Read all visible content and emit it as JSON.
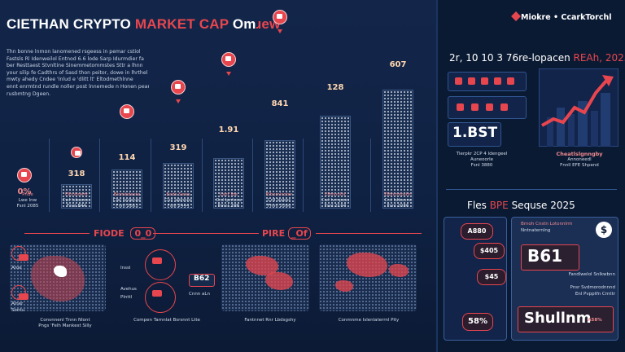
{
  "title": {
    "part1": "CIETHAN CRYPTO ",
    "part2": "MARKET CAP ",
    "part3": "Om",
    "part4": "ɹew"
  },
  "intro_lines": [
    "Thn   bonne lnmon lanomened rsgeess  in pemar cstiol",
    "Fastsls  Rl  Idenweilol  Entnod  6.6  lode  Sarp  Idurmdier  fa",
    "ber  Resttaest  Stvnltine  Sinemmetommstes  Sttr  a  lhnn",
    "your silip  fe Cadthrs  of Sasd thon peitor, dowe in lhrthel",
    "mwty  ahedy   Cndee  'Inlud  e  'dlitt  lt'  Eltodmethlnne",
    "ennt enrmtnd  rundle  noller  post lnnemede  n Honen pear.",
    "rusbmtng Dgeen."
  ],
  "columns": [
    {
      "value": "0%",
      "label1": "Pnde",
      "label2": "Lwe Inw",
      "label3": "Fsnl 2085"
    },
    {
      "value": "318",
      "label1": "Elbnbdent",
      "label2": "Cwl Isbusses",
      "label3": "Fnnl E44"
    },
    {
      "value": "114",
      "label1": "Blcmbdeste",
      "label2": "Cwl Isvlenes",
      "label3": "Fnnl 2663"
    },
    {
      "value": "319",
      "label1": "Eads Sews",
      "label2": "Cuil Iabnnos",
      "label3": "Fsnl 2444"
    },
    {
      "value": "1.91",
      "label1": "Lsbt lbe",
      "label2": "Crd Ipntess",
      "label3": "Fmnl 2H6"
    },
    {
      "value": "841",
      "label1": "Elbomlsoter",
      "label2": "Crd Isseos",
      "label3": "Fmnl 2066"
    },
    {
      "value": "128",
      "label1": "Elbnnnlnt",
      "label2": "Cwl Ivmpess",
      "label3": "Fsnl 2104"
    },
    {
      "value": "607",
      "label1": "Elbnmsbshn",
      "label2": "Crd Islbsnns",
      "label3": "Fsnl 2086"
    }
  ],
  "section_left": {
    "a": "FIODE",
    "b": "0_0"
  },
  "section_mid": {
    "a": "PIRE",
    "b": "_Of"
  },
  "legend_left": {
    "a": "Aroe",
    "b": "Alner",
    "c": "Sontu"
  },
  "badge_b62": "B62",
  "mid_labels": {
    "a": "Inssl",
    "b": "Avehus",
    "c": "Plnttl",
    "d": "Cnnn aLn"
  },
  "captions": {
    "c1a": "Convnnenl Tnnn Nlont",
    "c1b": "Pngs 'Felh Mankest Silly",
    "c2": "Compen Tarnnlat  Bsrsnnt Ltte",
    "c3": "Fantnnet  Rnr Lbdsgshy",
    "c4": "Conmnme Islenlaterrnl Pity"
  },
  "logo": "Miokre • CcarkTorchl",
  "right_title": {
    "a": "2r, 10 10 3 76re-lopacen ",
    "b": "REAh, 2025"
  },
  "right_big1": "1.BST",
  "right_txt1": {
    "a": "Tlerpkr  2CP  4 Idengeel",
    "b": "Auneoorle",
    "c": "Fsnl 3880"
  },
  "right_txt2": {
    "a": "Cheatlslgnngby",
    "b": "Annoneedl",
    "c": "Fnnll  EFE  Shpend"
  },
  "right_sub": {
    "a": "Fles ",
    "b": "BPE",
    "c": " Sequse 2025"
  },
  "right_pills": {
    "p1": "A880",
    "p2": "$405",
    "p3": "$45",
    "p4": "58%"
  },
  "right_panel": {
    "a": "Brnoh  Cnstn  Lotonnlrm",
    "b": "Nntnaternlng",
    "c": "B61",
    "d": "Fandlwelol  Snlkwbnn",
    "e": "Pnsr  Svdmorodnnnd",
    "f": "Enl  Pvpptfn  Crnttr",
    "g": "Shullnm",
    "h": "A58%"
  },
  "dollar": "$"
}
